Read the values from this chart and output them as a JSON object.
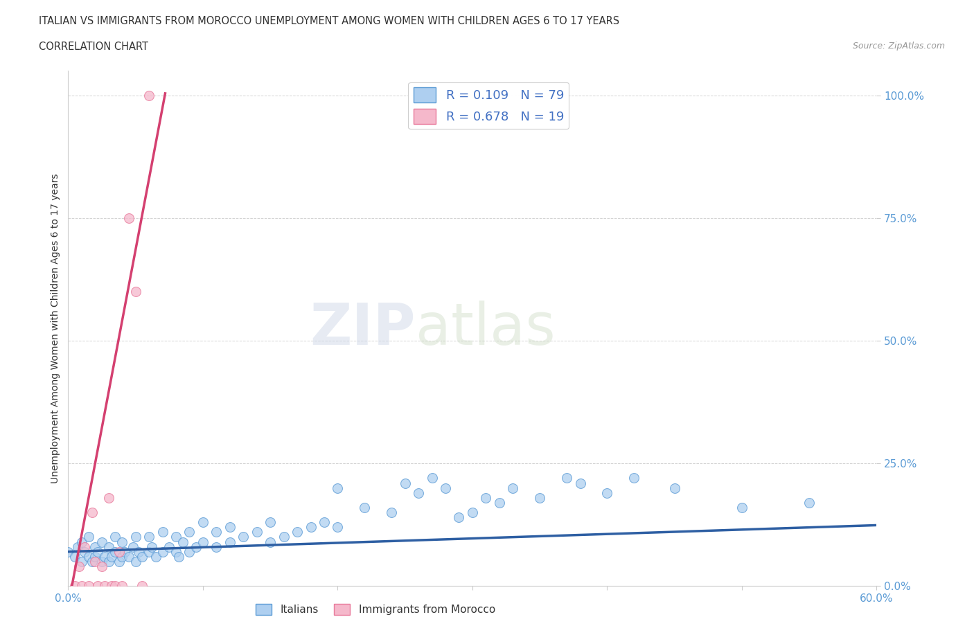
{
  "title_line1": "ITALIAN VS IMMIGRANTS FROM MOROCCO UNEMPLOYMENT AMONG WOMEN WITH CHILDREN AGES 6 TO 17 YEARS",
  "title_line2": "CORRELATION CHART",
  "source": "Source: ZipAtlas.com",
  "ylabel": "Unemployment Among Women with Children Ages 6 to 17 years",
  "xlim": [
    0.0,
    0.6
  ],
  "ylim": [
    0.0,
    1.05
  ],
  "yticks": [
    0.0,
    0.25,
    0.5,
    0.75,
    1.0
  ],
  "ytick_labels": [
    "0.0%",
    "25.0%",
    "50.0%",
    "75.0%",
    "100.0%"
  ],
  "xticks": [
    0.0,
    0.1,
    0.2,
    0.3,
    0.4,
    0.5,
    0.6
  ],
  "italian_color": "#aecff0",
  "italian_edge_color": "#5b9bd5",
  "morocco_color": "#f5b8cb",
  "morocco_edge_color": "#e8789a",
  "trend_italian_color": "#2e5fa3",
  "trend_morocco_color": "#d44070",
  "legend_r_italian": "R = 0.109",
  "legend_n_italian": "N = 79",
  "legend_r_morocco": "R = 0.678",
  "legend_n_morocco": "N = 19",
  "watermark_zip": "ZIP",
  "watermark_atlas": "atlas",
  "grid_color": "#c8c8c8",
  "background_color": "#ffffff",
  "italian_x": [
    0.0,
    0.005,
    0.007,
    0.01,
    0.01,
    0.012,
    0.015,
    0.015,
    0.018,
    0.02,
    0.02,
    0.022,
    0.025,
    0.025,
    0.027,
    0.03,
    0.03,
    0.032,
    0.035,
    0.035,
    0.038,
    0.04,
    0.04,
    0.042,
    0.045,
    0.048,
    0.05,
    0.05,
    0.052,
    0.055,
    0.06,
    0.06,
    0.062,
    0.065,
    0.07,
    0.07,
    0.075,
    0.08,
    0.08,
    0.082,
    0.085,
    0.09,
    0.09,
    0.095,
    0.1,
    0.1,
    0.11,
    0.11,
    0.12,
    0.12,
    0.13,
    0.14,
    0.15,
    0.15,
    0.16,
    0.17,
    0.18,
    0.19,
    0.2,
    0.2,
    0.22,
    0.24,
    0.25,
    0.26,
    0.27,
    0.28,
    0.29,
    0.3,
    0.31,
    0.32,
    0.33,
    0.35,
    0.37,
    0.38,
    0.4,
    0.42,
    0.45,
    0.5,
    0.55
  ],
  "italian_y": [
    0.07,
    0.06,
    0.08,
    0.05,
    0.09,
    0.07,
    0.06,
    0.1,
    0.05,
    0.06,
    0.08,
    0.07,
    0.05,
    0.09,
    0.06,
    0.05,
    0.08,
    0.06,
    0.07,
    0.1,
    0.05,
    0.06,
    0.09,
    0.07,
    0.06,
    0.08,
    0.05,
    0.1,
    0.07,
    0.06,
    0.07,
    0.1,
    0.08,
    0.06,
    0.07,
    0.11,
    0.08,
    0.07,
    0.1,
    0.06,
    0.09,
    0.07,
    0.11,
    0.08,
    0.09,
    0.13,
    0.08,
    0.11,
    0.09,
    0.12,
    0.1,
    0.11,
    0.09,
    0.13,
    0.1,
    0.11,
    0.12,
    0.13,
    0.12,
    0.2,
    0.16,
    0.15,
    0.21,
    0.19,
    0.22,
    0.2,
    0.14,
    0.15,
    0.18,
    0.17,
    0.2,
    0.18,
    0.22,
    0.21,
    0.19,
    0.22,
    0.2,
    0.16,
    0.17
  ],
  "morocco_x": [
    0.005,
    0.008,
    0.01,
    0.012,
    0.015,
    0.018,
    0.02,
    0.022,
    0.025,
    0.027,
    0.03,
    0.032,
    0.035,
    0.038,
    0.04,
    0.045,
    0.05,
    0.055,
    0.06
  ],
  "morocco_y": [
    0.0,
    0.04,
    0.0,
    0.08,
    0.0,
    0.15,
    0.05,
    0.0,
    0.04,
    0.0,
    0.18,
    0.0,
    0.0,
    0.07,
    0.0,
    0.75,
    0.6,
    0.0,
    1.0
  ],
  "morocco_trend_x0": -0.002,
  "morocco_trend_x1": 0.075,
  "morocco_trend_slope": 14.5,
  "morocco_trend_intercept": -0.04,
  "italian_trend_x0": 0.0,
  "italian_trend_x1": 0.6,
  "italian_trend_slope": 0.09,
  "italian_trend_intercept": 0.07
}
